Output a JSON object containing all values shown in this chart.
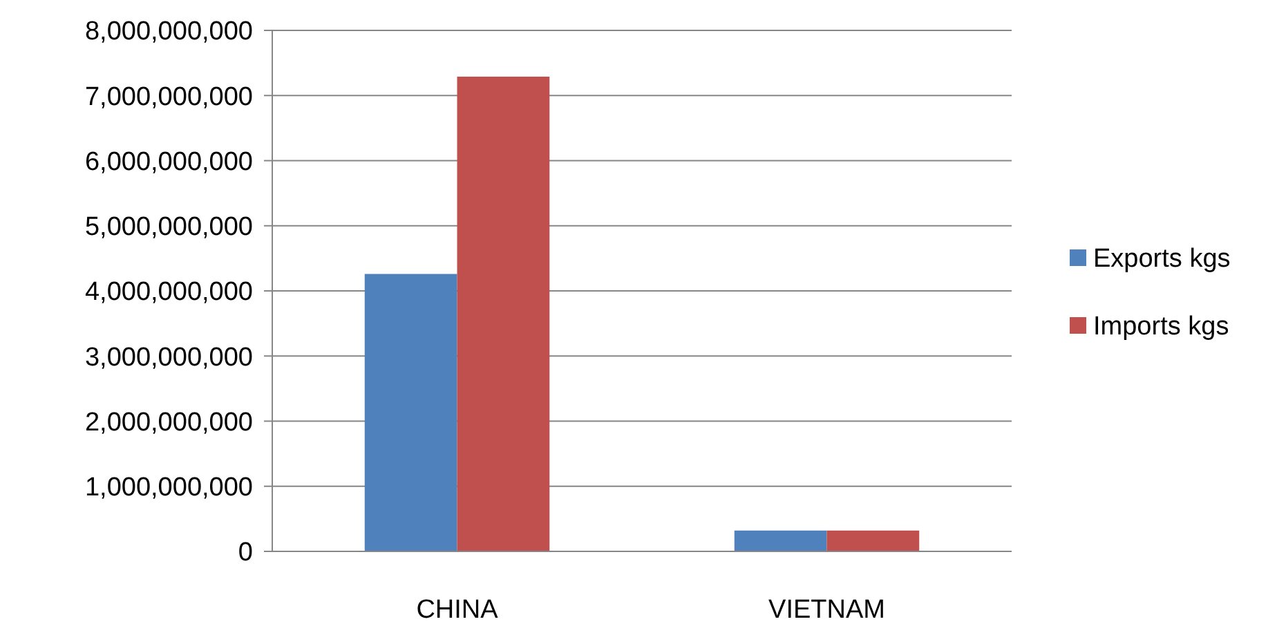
{
  "chart_data": {
    "type": "bar",
    "categories": [
      "CHINA",
      "VIETNAM"
    ],
    "series": [
      {
        "name": "Exports kgs",
        "color": "#4f81bd",
        "values": [
          4260000000,
          320000000
        ]
      },
      {
        "name": "Imports kgs",
        "color": "#c0504d",
        "values": [
          7290000000,
          320000000
        ]
      }
    ],
    "ylim": [
      0,
      8000000000
    ],
    "yticks": [
      {
        "value": 0,
        "label": "0"
      },
      {
        "value": 1000000000,
        "label": "1,000,000,000"
      },
      {
        "value": 2000000000,
        "label": "2,000,000,000"
      },
      {
        "value": 3000000000,
        "label": "3,000,000,000"
      },
      {
        "value": 4000000000,
        "label": "4,000,000,000"
      },
      {
        "value": 5000000000,
        "label": "5,000,000,000"
      },
      {
        "value": 6000000000,
        "label": "6,000,000,000"
      },
      {
        "value": 7000000000,
        "label": "7,000,000,000"
      },
      {
        "value": 8000000000,
        "label": "8,000,000,000"
      }
    ],
    "grid": "y",
    "legend": "right"
  }
}
